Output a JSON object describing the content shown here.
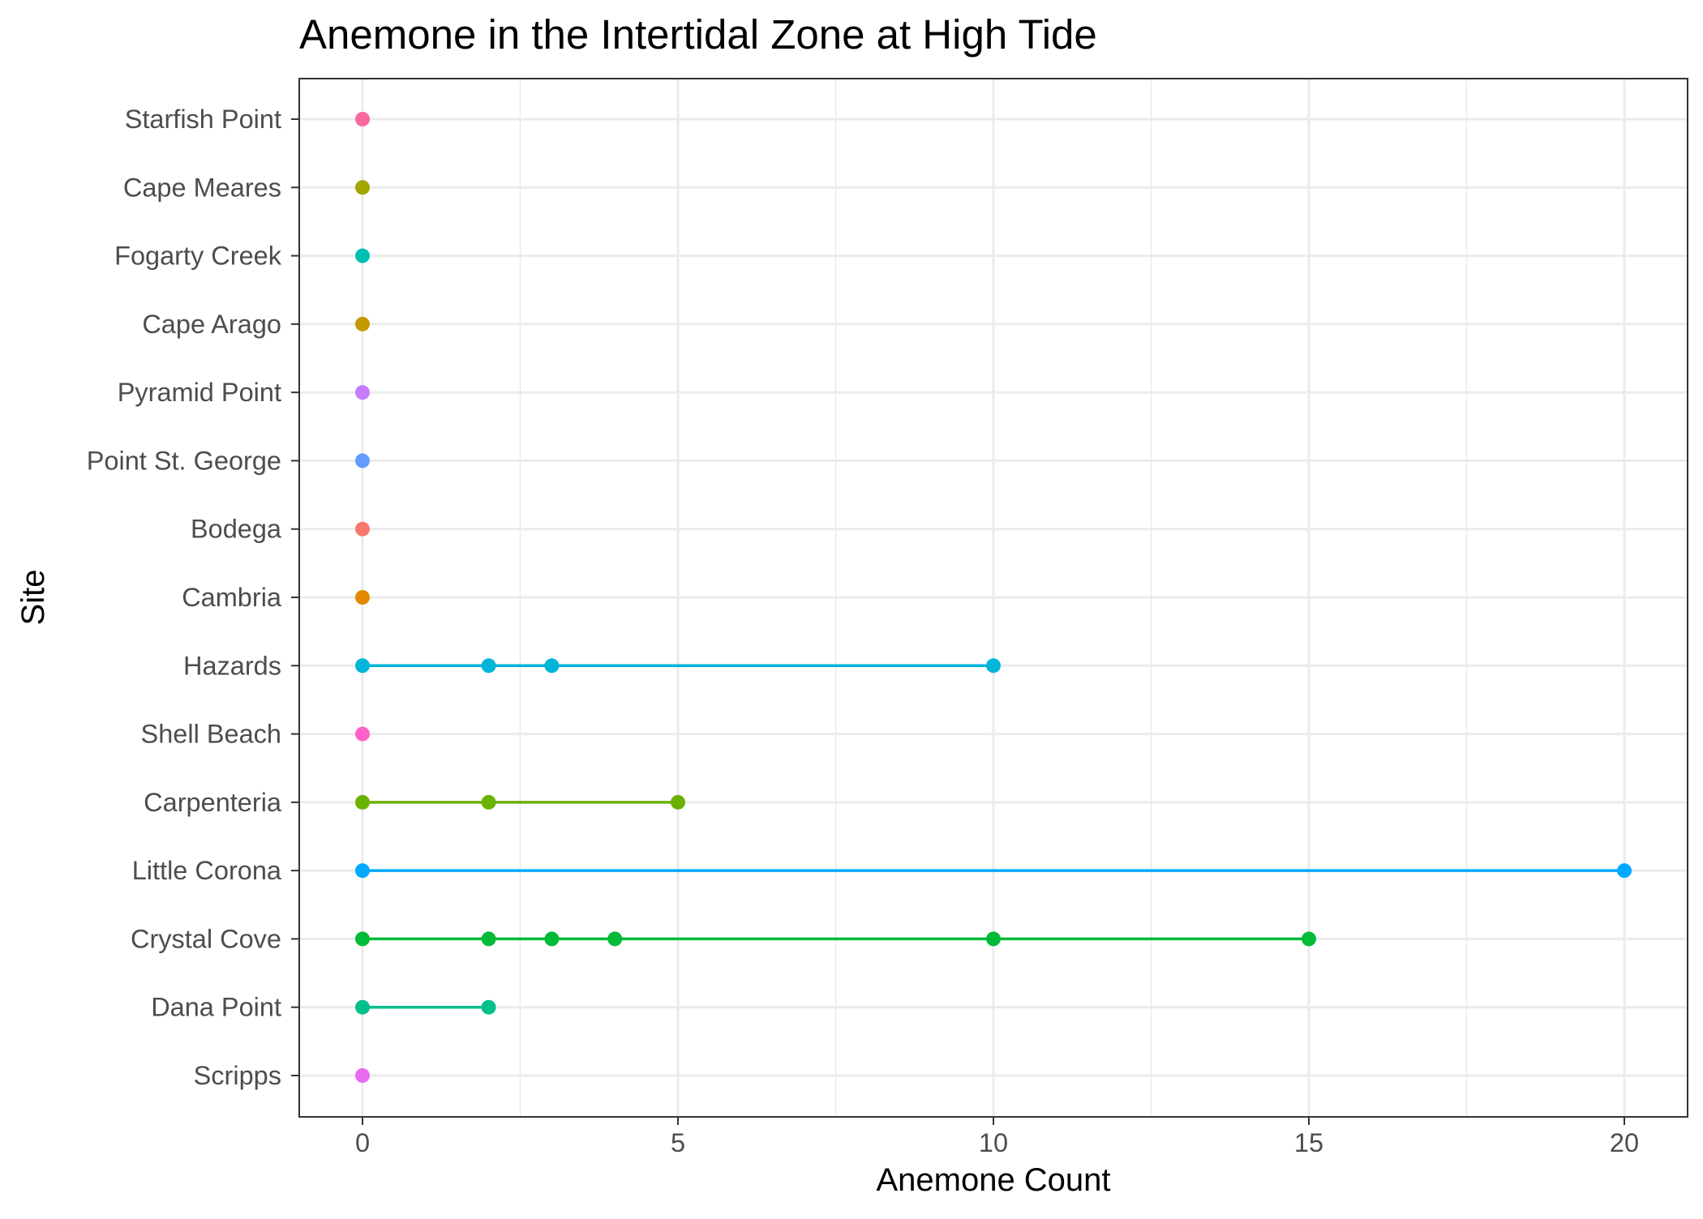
{
  "chart_data": {
    "type": "scatter",
    "title": "Anemone in the Intertidal Zone at High Tide",
    "xlabel": "Anemone Count",
    "ylabel": "Site",
    "xlim": [
      -1,
      20.8
    ],
    "x_ticks": [
      0,
      5,
      10,
      15,
      20
    ],
    "x_minor_ticks": [
      2.5,
      7.5,
      12.5,
      17.5
    ],
    "grid": true,
    "legend": "none",
    "categories": [
      "Starfish Point",
      "Cape Meares",
      "Fogarty Creek",
      "Cape Arago",
      "Pyramid Point",
      "Point St. George",
      "Bodega",
      "Cambria",
      "Hazards",
      "Shell Beach",
      "Carpenteria",
      "Little Corona",
      "Crystal Cove",
      "Dana Point",
      "Scripps"
    ],
    "series": [
      {
        "site": "Starfish Point",
        "color": "#F8679F",
        "values": [
          0
        ]
      },
      {
        "site": "Cape Meares",
        "color": "#A3A500",
        "values": [
          0
        ]
      },
      {
        "site": "Fogarty Creek",
        "color": "#00BFB3",
        "values": [
          0
        ]
      },
      {
        "site": "Cape Arago",
        "color": "#C49A00",
        "values": [
          0
        ]
      },
      {
        "site": "Pyramid Point",
        "color": "#C77CFF",
        "values": [
          0
        ]
      },
      {
        "site": "Point St. George",
        "color": "#619CFF",
        "values": [
          0
        ]
      },
      {
        "site": "Bodega",
        "color": "#F8766D",
        "values": [
          0
        ]
      },
      {
        "site": "Cambria",
        "color": "#E38900",
        "values": [
          0
        ]
      },
      {
        "site": "Hazards",
        "color": "#00B5D8",
        "values": [
          0,
          2,
          3,
          10
        ]
      },
      {
        "site": "Shell Beach",
        "color": "#FF61C9",
        "values": [
          0
        ]
      },
      {
        "site": "Carpenteria",
        "color": "#6BB100",
        "values": [
          0,
          2,
          5
        ]
      },
      {
        "site": "Little Corona",
        "color": "#00A9FF",
        "values": [
          0,
          20
        ]
      },
      {
        "site": "Crystal Cove",
        "color": "#00BA38",
        "values": [
          0,
          2,
          3,
          4,
          10,
          15
        ]
      },
      {
        "site": "Dana Point",
        "color": "#00C08B",
        "values": [
          0,
          2
        ]
      },
      {
        "site": "Scripps",
        "color": "#E76BF3",
        "values": [
          0
        ]
      }
    ]
  }
}
